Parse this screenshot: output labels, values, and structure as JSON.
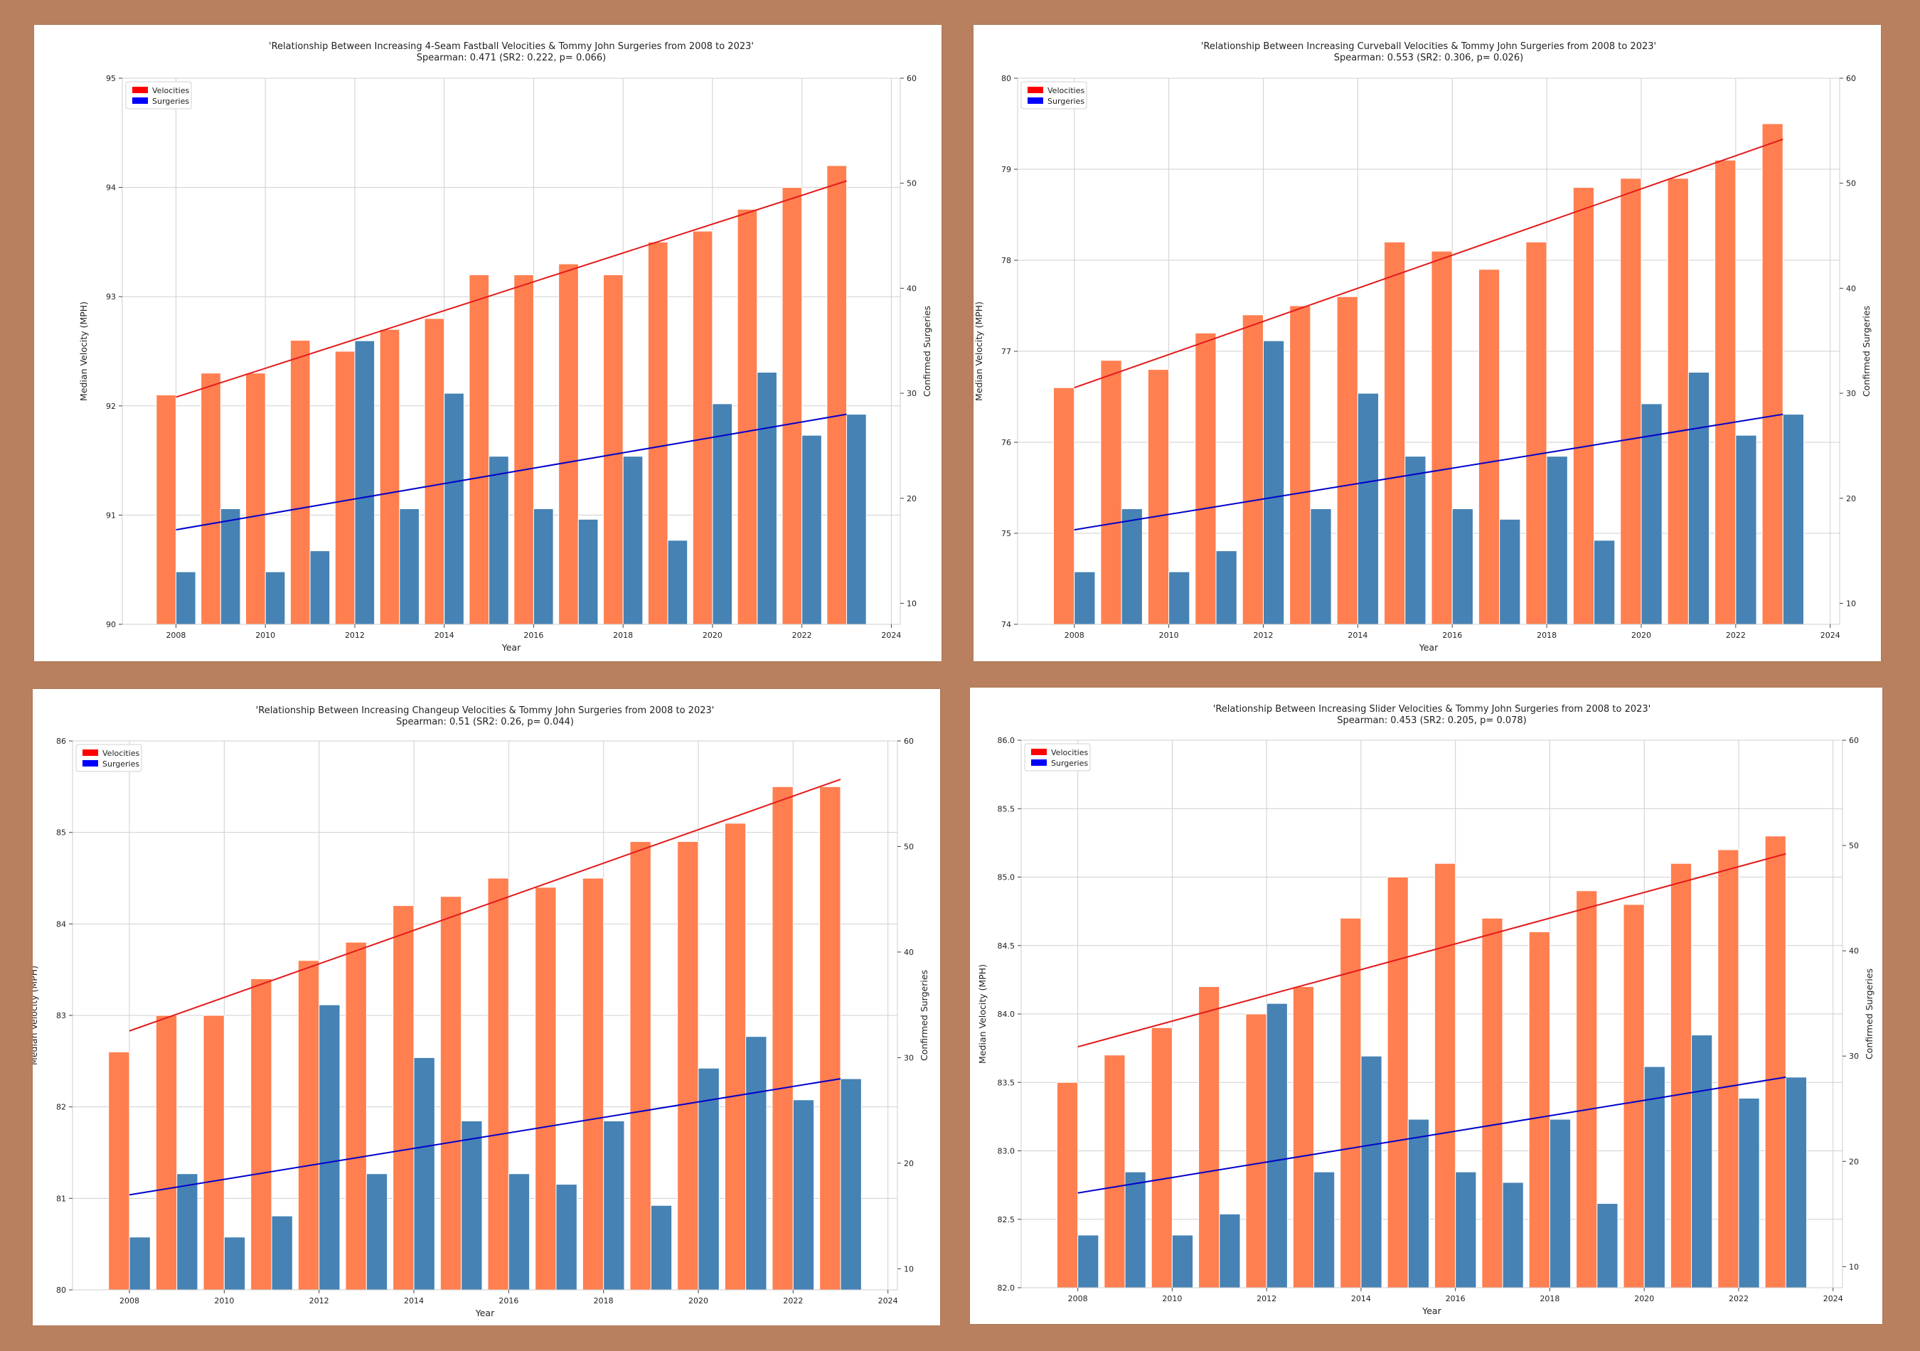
{
  "colors": {
    "background": "#b8805e",
    "velocity_bar": "#ff7f50",
    "surgery_bar": "#4682b4",
    "velocity_trend": "#e31a1c",
    "surgery_trend": "#0000cc",
    "legend_velocity": "#ff0000",
    "legend_surgery": "#0000ff"
  },
  "chart_data": [
    {
      "type": "bar",
      "title": "'Relationship Between Increasing 4-Seam Fastball Velocities & Tommy John Surgeries from 2008 to 2023'",
      "subtitle": "Spearman: 0.471 (SR2: 0.222, p= 0.066)",
      "xlabel": "Year",
      "ylabel": "Median Velocity (MPH)",
      "y2label": "Confirmed Surgeries",
      "x": [
        2008,
        2009,
        2010,
        2011,
        2012,
        2013,
        2014,
        2015,
        2016,
        2017,
        2018,
        2019,
        2020,
        2021,
        2022,
        2023
      ],
      "series": [
        {
          "name": "Velocities",
          "axis": "left",
          "values": [
            92.1,
            92.3,
            92.3,
            92.6,
            92.5,
            92.7,
            92.8,
            93.2,
            93.2,
            93.3,
            93.2,
            93.5,
            93.6,
            93.8,
            94.0,
            94.2
          ]
        },
        {
          "name": "Surgeries",
          "axis": "right",
          "values": [
            13,
            19,
            13,
            15,
            35,
            19,
            30,
            24,
            19,
            18,
            24,
            16,
            29,
            32,
            26,
            28
          ]
        }
      ],
      "trend_velocity": [
        92.08,
        94.06
      ],
      "trend_surgeries": [
        17.0,
        28.0
      ],
      "ylim": [
        90,
        95
      ],
      "yticks": [
        "90",
        "91",
        "92",
        "93",
        "94",
        "95"
      ],
      "y2lim": [
        8,
        60
      ],
      "y2ticks": [
        "10",
        "20",
        "30",
        "40",
        "50",
        "60"
      ],
      "xlim": [
        2006.8,
        2024.2
      ],
      "xticks": [
        "2008",
        "2010",
        "2012",
        "2014",
        "2016",
        "2018",
        "2020",
        "2022",
        "2024"
      ],
      "legend": [
        "Velocities",
        "Surgeries"
      ],
      "legend_position": "top-left",
      "grid": true
    },
    {
      "type": "bar",
      "title": "'Relationship Between Increasing Curveball Velocities & Tommy John Surgeries from 2008 to 2023'",
      "subtitle": "Spearman: 0.553 (SR2: 0.306, p= 0.026)",
      "xlabel": "Year",
      "ylabel": "Median Velocity (MPH)",
      "y2label": "Confirmed Surgeries",
      "x": [
        2008,
        2009,
        2010,
        2011,
        2012,
        2013,
        2014,
        2015,
        2016,
        2017,
        2018,
        2019,
        2020,
        2021,
        2022,
        2023
      ],
      "series": [
        {
          "name": "Velocities",
          "axis": "left",
          "values": [
            76.6,
            76.9,
            76.8,
            77.2,
            77.4,
            77.5,
            77.6,
            78.2,
            78.1,
            77.9,
            78.2,
            78.8,
            78.9,
            78.9,
            79.1,
            79.5
          ]
        },
        {
          "name": "Surgeries",
          "axis": "right",
          "values": [
            13,
            19,
            13,
            15,
            35,
            19,
            30,
            24,
            19,
            18,
            24,
            16,
            29,
            32,
            26,
            28
          ]
        }
      ],
      "trend_velocity": [
        76.6,
        79.33
      ],
      "trend_surgeries": [
        17.0,
        28.0
      ],
      "ylim": [
        74,
        80
      ],
      "yticks": [
        "74",
        "75",
        "76",
        "77",
        "78",
        "79",
        "80"
      ],
      "y2lim": [
        8,
        60
      ],
      "y2ticks": [
        "10",
        "20",
        "30",
        "40",
        "50",
        "60"
      ],
      "xlim": [
        2006.8,
        2024.2
      ],
      "xticks": [
        "2008",
        "2010",
        "2012",
        "2014",
        "2016",
        "2018",
        "2020",
        "2022",
        "2024"
      ],
      "legend": [
        "Velocities",
        "Surgeries"
      ],
      "legend_position": "top-left",
      "grid": true
    },
    {
      "type": "bar",
      "title": "'Relationship Between Increasing Changeup Velocities & Tommy John Surgeries from 2008 to 2023'",
      "subtitle": "Spearman: 0.51 (SR2: 0.26, p= 0.044)",
      "xlabel": "Year",
      "ylabel": "Median Velocity (MPH)",
      "y2label": "Confirmed Surgeries",
      "x": [
        2008,
        2009,
        2010,
        2011,
        2012,
        2013,
        2014,
        2015,
        2016,
        2017,
        2018,
        2019,
        2020,
        2021,
        2022,
        2023
      ],
      "series": [
        {
          "name": "Velocities",
          "axis": "left",
          "values": [
            82.6,
            83.0,
            83.0,
            83.4,
            83.6,
            83.8,
            84.2,
            84.3,
            84.5,
            84.4,
            84.5,
            84.9,
            84.9,
            85.1,
            85.5,
            85.5
          ]
        },
        {
          "name": "Surgeries",
          "axis": "right",
          "values": [
            13,
            19,
            13,
            15,
            35,
            19,
            30,
            24,
            19,
            18,
            24,
            16,
            29,
            32,
            26,
            28
          ]
        }
      ],
      "trend_velocity": [
        82.83,
        85.58
      ],
      "trend_surgeries": [
        17.0,
        28.0
      ],
      "ylim": [
        80,
        86
      ],
      "yticks": [
        "80",
        "81",
        "82",
        "83",
        "84",
        "85",
        "86"
      ],
      "y2lim": [
        8,
        60
      ],
      "y2ticks": [
        "10",
        "20",
        "30",
        "40",
        "50",
        "60"
      ],
      "xlim": [
        2006.8,
        2024.2
      ],
      "xticks": [
        "2008",
        "2010",
        "2012",
        "2014",
        "2016",
        "2018",
        "2020",
        "2022",
        "2024"
      ],
      "legend": [
        "Velocities",
        "Surgeries"
      ],
      "legend_position": "top-left",
      "grid": true
    },
    {
      "type": "bar",
      "title": "'Relationship Between Increasing Slider Velocities & Tommy John Surgeries from 2008 to 2023'",
      "subtitle": "Spearman: 0.453 (SR2: 0.205, p= 0.078)",
      "xlabel": "Year",
      "ylabel": "Median Velocity (MPH)",
      "y2label": "Confirmed Surgeries",
      "x": [
        2008,
        2009,
        2010,
        2011,
        2012,
        2013,
        2014,
        2015,
        2016,
        2017,
        2018,
        2019,
        2020,
        2021,
        2022,
        2023
      ],
      "series": [
        {
          "name": "Velocities",
          "axis": "left",
          "values": [
            83.5,
            83.7,
            83.9,
            84.2,
            84.0,
            84.2,
            84.7,
            85.0,
            85.1,
            84.7,
            84.6,
            84.9,
            84.8,
            85.1,
            85.2,
            85.3
          ]
        },
        {
          "name": "Surgeries",
          "axis": "right",
          "values": [
            13,
            19,
            13,
            15,
            35,
            19,
            30,
            24,
            19,
            18,
            24,
            16,
            29,
            32,
            26,
            28
          ]
        }
      ],
      "trend_velocity": [
        83.76,
        85.17
      ],
      "trend_surgeries": [
        17.0,
        28.0
      ],
      "ylim": [
        82.0,
        86.0
      ],
      "yticks": [
        "82.0",
        "82.5",
        "83.0",
        "83.5",
        "84.0",
        "84.5",
        "85.0",
        "85.5",
        "86.0"
      ],
      "y2lim": [
        8,
        60
      ],
      "y2ticks": [
        "10",
        "20",
        "30",
        "40",
        "50",
        "60"
      ],
      "xlim": [
        2006.8,
        2024.2
      ],
      "xticks": [
        "2008",
        "2010",
        "2012",
        "2014",
        "2016",
        "2018",
        "2020",
        "2022",
        "2024"
      ],
      "legend": [
        "Velocities",
        "Surgeries"
      ],
      "legend_position": "top-left",
      "grid": true
    }
  ]
}
